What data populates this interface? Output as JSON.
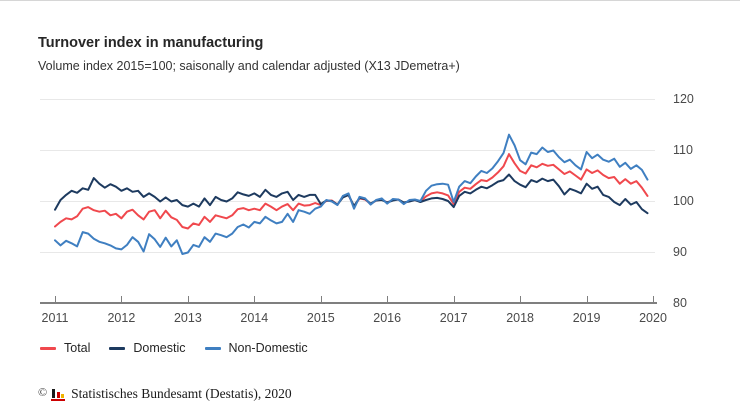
{
  "chart_data": {
    "type": "line",
    "title": "Turnover index in manufacturing",
    "subtitle": "Volume index 2015=100; saisonally and calendar adjusted (X13 JDemetra+)",
    "x_unit": "month",
    "x_range": [
      "2011-01",
      "2019-12"
    ],
    "x_tick_labels": [
      "2011",
      "2012",
      "2013",
      "2014",
      "2015",
      "2016",
      "2017",
      "2018",
      "2019",
      "2020"
    ],
    "y_tick_labels": [
      "120",
      "110",
      "100",
      "90",
      "80"
    ],
    "ylim": [
      80,
      120
    ],
    "grid": true,
    "legend_position": "bottom",
    "series": [
      {
        "name": "Total",
        "color": "#f0484d",
        "values": [
          95.0,
          95.9,
          96.6,
          96.4,
          97.0,
          98.5,
          98.8,
          98.2,
          97.9,
          98.1,
          97.2,
          97.5,
          96.6,
          97.9,
          98.3,
          97.2,
          96.4,
          97.9,
          98.2,
          96.6,
          98.1,
          96.8,
          96.3,
          94.9,
          94.6,
          95.6,
          95.3,
          96.9,
          95.9,
          97.2,
          96.9,
          96.6,
          97.2,
          98.4,
          98.6,
          98.2,
          98.5,
          98.2,
          99.5,
          98.9,
          98.2,
          98.9,
          99.4,
          98.2,
          99.5,
          99.1,
          99.2,
          99.6,
          99.2,
          100.0,
          100.1,
          99.3,
          100.8,
          101.2,
          98.9,
          100.5,
          100.3,
          99.4,
          100.1,
          100.3,
          99.7,
          100.2,
          100.3,
          99.6,
          100.0,
          100.2,
          99.9,
          100.9,
          101.5,
          101.7,
          101.5,
          101.1,
          99.4,
          101.8,
          102.6,
          102.4,
          103.3,
          104.1,
          103.9,
          104.6,
          105.6,
          106.8,
          109.2,
          107.4,
          105.9,
          105.4,
          107.0,
          106.6,
          107.3,
          106.9,
          107.1,
          106.2,
          105.3,
          105.8,
          105.0,
          104.2,
          106.2,
          105.5,
          106.0,
          105.1,
          104.5,
          104.7,
          103.4,
          104.3,
          103.4,
          103.9,
          102.6,
          101.0
        ]
      },
      {
        "name": "Domestic",
        "color": "#1d3a5f",
        "values": [
          98.3,
          100.2,
          101.2,
          102.0,
          101.6,
          102.5,
          102.2,
          104.5,
          103.4,
          102.6,
          103.3,
          102.8,
          102.0,
          102.5,
          101.8,
          102.0,
          100.8,
          101.5,
          100.8,
          99.9,
          100.7,
          99.9,
          100.2,
          99.2,
          98.9,
          99.5,
          98.9,
          100.5,
          99.2,
          100.8,
          100.2,
          99.9,
          100.5,
          101.7,
          101.3,
          101.0,
          101.5,
          100.8,
          102.2,
          101.2,
          100.8,
          101.5,
          101.8,
          100.2,
          101.2,
          100.8,
          101.2,
          101.2,
          99.4,
          100.1,
          100.0,
          99.3,
          100.7,
          101.2,
          99.0,
          100.6,
          100.4,
          99.5,
          100.1,
          100.2,
          99.7,
          100.1,
          100.3,
          99.7,
          99.9,
          100.2,
          99.8,
          100.2,
          100.5,
          100.6,
          100.4,
          100.0,
          98.8,
          101.0,
          101.8,
          101.5,
          102.2,
          102.8,
          102.5,
          103.1,
          103.8,
          104.1,
          105.2,
          103.9,
          103.2,
          102.7,
          104.1,
          103.7,
          104.4,
          103.9,
          104.2,
          102.9,
          101.3,
          102.4,
          102.0,
          101.5,
          103.4,
          102.4,
          102.8,
          101.2,
          100.8,
          99.8,
          99.2,
          100.4,
          99.3,
          99.8,
          98.4,
          97.6
        ]
      },
      {
        "name": "Non-Domestic",
        "color": "#3f7fc1",
        "values": [
          92.3,
          91.3,
          92.2,
          91.7,
          91.1,
          93.9,
          93.6,
          92.6,
          92.0,
          91.7,
          91.3,
          90.7,
          90.5,
          91.4,
          92.9,
          92.0,
          90.1,
          93.5,
          92.5,
          91.0,
          92.8,
          91.1,
          92.3,
          89.6,
          89.9,
          91.4,
          91.0,
          92.9,
          92.0,
          93.6,
          93.3,
          92.9,
          93.6,
          94.9,
          95.4,
          94.8,
          95.9,
          95.6,
          96.9,
          96.2,
          95.6,
          95.9,
          97.5,
          95.9,
          98.2,
          97.9,
          97.5,
          98.5,
          98.9,
          100.2,
          99.9,
          99.2,
          101.0,
          101.5,
          98.5,
          100.8,
          100.5,
          99.3,
          100.2,
          100.5,
          99.5,
          100.4,
          100.3,
          99.4,
          100.2,
          100.3,
          100.0,
          102.0,
          103.0,
          103.3,
          103.4,
          103.2,
          99.8,
          102.8,
          103.9,
          103.5,
          104.8,
          105.9,
          105.5,
          106.4,
          107.8,
          109.4,
          113.0,
          110.9,
          108.0,
          107.2,
          109.5,
          109.2,
          110.5,
          109.6,
          109.9,
          108.6,
          107.6,
          108.1,
          107.0,
          106.2,
          109.6,
          108.4,
          109.1,
          108.1,
          107.7,
          108.3,
          106.7,
          107.5,
          106.3,
          107.0,
          106.1,
          104.2
        ]
      }
    ]
  },
  "footer": {
    "copyright": "©",
    "text": "Statistisches Bundesamt (Destatis), 2020",
    "logo_colors": {
      "black": "#1a1a1a",
      "red": "#cc0000",
      "gold": "#f0b400"
    }
  }
}
